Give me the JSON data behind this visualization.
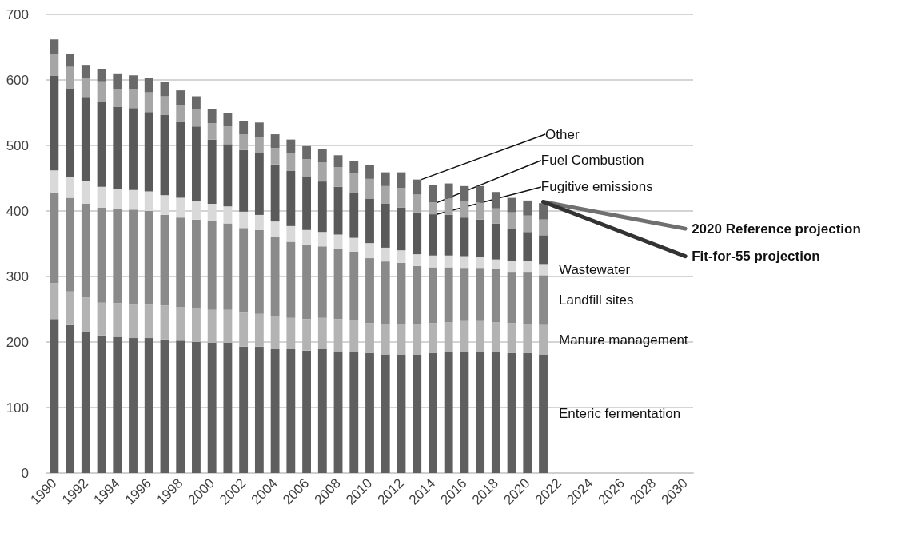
{
  "chart_data": {
    "type": "bar",
    "stacked": true,
    "categories": [
      "1990",
      null,
      "1992",
      null,
      "1994",
      null,
      "1996",
      null,
      "1998",
      null,
      "2000",
      null,
      "2002",
      null,
      "2004",
      null,
      "2006",
      null,
      "2008",
      null,
      "2010",
      null,
      "2012",
      null,
      "2014",
      null,
      "2016",
      null,
      "2018",
      null,
      "2020",
      null,
      "2022",
      null,
      "2024",
      null,
      "2026",
      null,
      "2028",
      null,
      "2030"
    ],
    "ylim": [
      0,
      700
    ],
    "yticks": [
      0,
      100,
      200,
      300,
      400,
      500,
      600,
      700
    ],
    "grid": "y",
    "legend": false,
    "series": [
      {
        "name": "Enteric fermentation",
        "color": "#5f5f5f",
        "values": [
          235,
          226,
          215,
          210,
          208,
          206,
          206,
          204,
          202,
          200,
          199,
          199,
          193,
          193,
          189,
          189,
          187,
          189,
          186,
          185,
          183,
          181,
          181,
          181,
          183,
          185,
          185,
          185,
          185,
          183,
          183,
          181,
          null,
          null,
          null,
          null,
          null,
          null,
          null,
          null,
          null
        ]
      },
      {
        "name": "Manure management",
        "color": "#b3b3b3",
        "values": [
          55,
          51,
          53,
          50,
          51,
          51,
          51,
          52,
          51,
          51,
          50,
          50,
          52,
          50,
          51,
          48,
          48,
          48,
          49,
          49,
          46,
          46,
          46,
          46,
          46,
          45,
          47,
          47,
          45,
          46,
          45,
          45,
          null,
          null,
          null,
          null,
          null,
          null,
          null,
          null,
          null
        ]
      },
      {
        "name": "Landfill sites",
        "color": "#8a8a8a",
        "values": [
          138,
          143,
          143,
          145,
          145,
          145,
          143,
          138,
          137,
          136,
          136,
          132,
          129,
          128,
          120,
          116,
          114,
          109,
          107,
          104,
          99,
          96,
          94,
          89,
          85,
          84,
          80,
          80,
          81,
          77,
          78,
          76,
          null,
          null,
          null,
          null,
          null,
          null,
          null,
          null,
          null
        ]
      },
      {
        "name": "Wastewater",
        "color": "#d9d9d9",
        "values": [
          34,
          32,
          34,
          32,
          30,
          30,
          30,
          30,
          30,
          28,
          26,
          26,
          25,
          23,
          24,
          24,
          22,
          22,
          22,
          21,
          23,
          21,
          19,
          18,
          18,
          18,
          19,
          18,
          15,
          18,
          18,
          17,
          null,
          null,
          null,
          null,
          null,
          null,
          null,
          null,
          null
        ]
      },
      {
        "name": "Fugitive emissions",
        "color": "#5a5a5a",
        "values": [
          144,
          134,
          128,
          129,
          125,
          125,
          121,
          123,
          116,
          114,
          98,
          95,
          94,
          94,
          87,
          84,
          81,
          77,
          73,
          69,
          68,
          67,
          65,
          64,
          63,
          62,
          59,
          57,
          55,
          48,
          44,
          44,
          null,
          null,
          null,
          null,
          null,
          null,
          null,
          null,
          null
        ]
      },
      {
        "name": "Fuel Combustion",
        "color": "#a6a6a6",
        "values": [
          34,
          34,
          30,
          32,
          27,
          28,
          30,
          28,
          26,
          26,
          25,
          27,
          24,
          24,
          25,
          27,
          27,
          29,
          30,
          29,
          30,
          27,
          30,
          27,
          18,
          25,
          25,
          26,
          23,
          26,
          25,
          24,
          null,
          null,
          null,
          null,
          null,
          null,
          null,
          null,
          null
        ]
      },
      {
        "name": "Other",
        "color": "#6a6a6a",
        "values": [
          22,
          20,
          20,
          19,
          24,
          22,
          22,
          22,
          22,
          20,
          22,
          20,
          20,
          23,
          21,
          21,
          20,
          21,
          18,
          19,
          21,
          21,
          24,
          23,
          27,
          23,
          23,
          25,
          25,
          22,
          23,
          25,
          null,
          null,
          null,
          null,
          null,
          null,
          null,
          null,
          null
        ]
      },
      {
        "name": "2020 Reference projection",
        "type": "line",
        "color": "#707070",
        "values": [
          null,
          null,
          null,
          null,
          null,
          null,
          null,
          null,
          null,
          null,
          null,
          null,
          null,
          null,
          null,
          null,
          null,
          null,
          null,
          null,
          null,
          null,
          null,
          null,
          null,
          null,
          null,
          null,
          null,
          null,
          null,
          414,
          null,
          null,
          null,
          null,
          null,
          null,
          null,
          null,
          373
        ]
      },
      {
        "name": "Fit-for-55 projection",
        "type": "line",
        "color": "#333333",
        "values": [
          null,
          null,
          null,
          null,
          null,
          null,
          null,
          null,
          null,
          null,
          null,
          null,
          null,
          null,
          null,
          null,
          null,
          null,
          null,
          null,
          null,
          null,
          null,
          null,
          null,
          null,
          null,
          null,
          null,
          null,
          null,
          414,
          null,
          null,
          null,
          null,
          null,
          null,
          null,
          null,
          331
        ]
      }
    ]
  }
}
